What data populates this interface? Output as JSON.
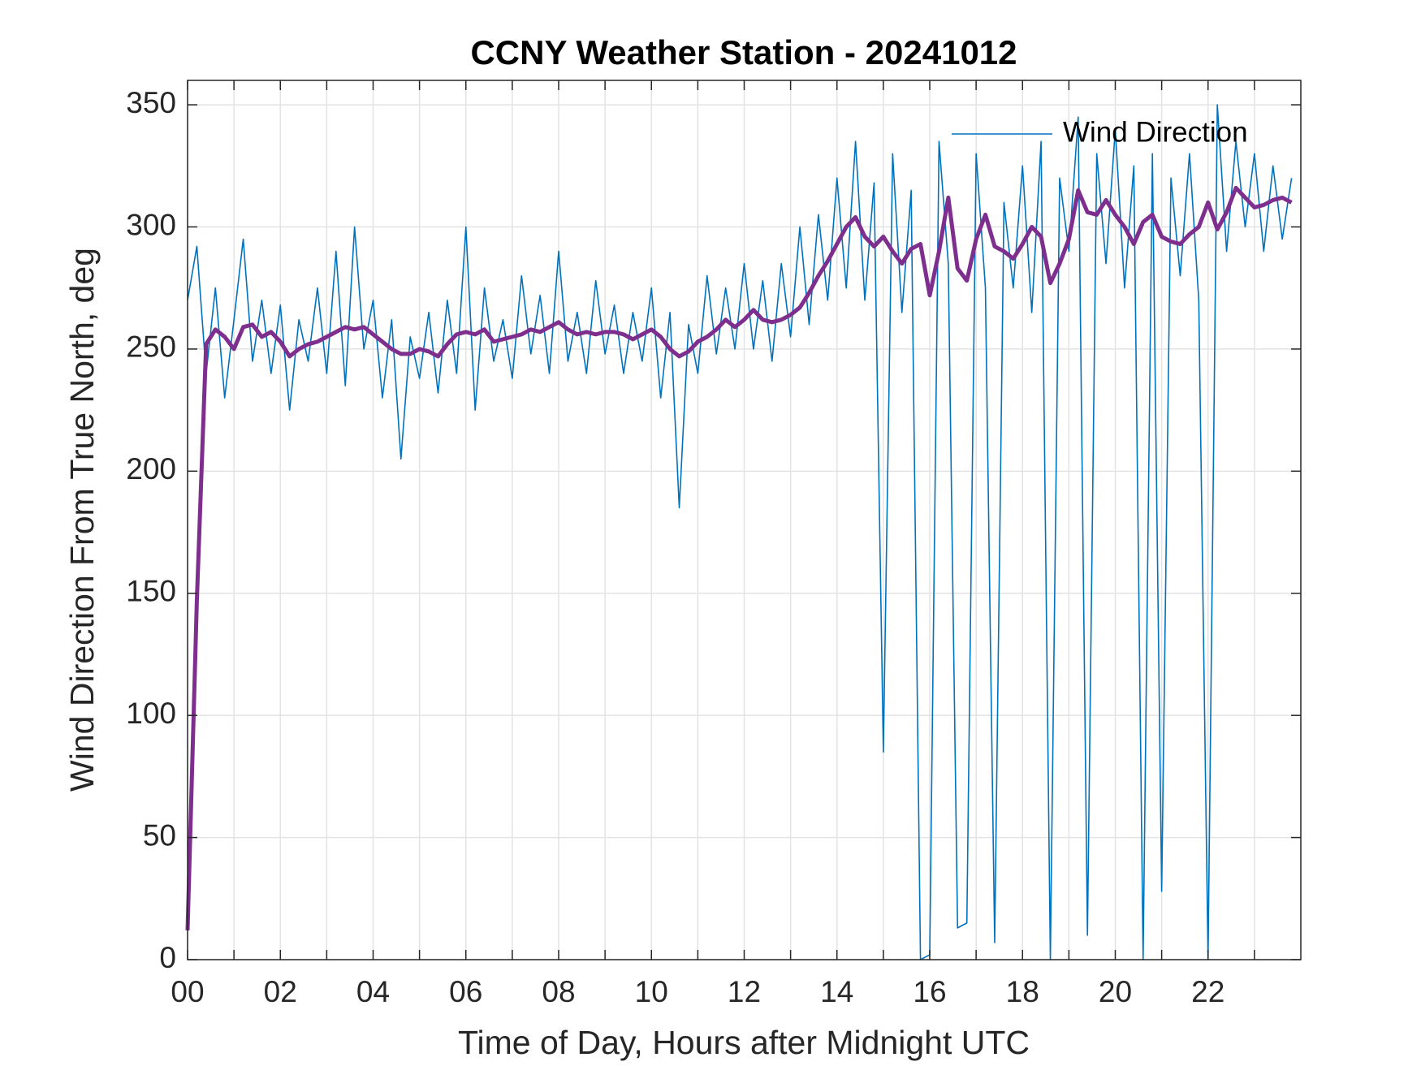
{
  "chart_data": {
    "type": "line",
    "title": "CCNY Weather Station - 20241012",
    "xlabel": "Time of Day, Hours after Midnight UTC",
    "ylabel": "Wind Direction From True North, deg",
    "xlim": [
      0,
      24
    ],
    "ylim": [
      0,
      360
    ],
    "xticks": [
      {
        "value": 0,
        "label": "00"
      },
      {
        "value": 2,
        "label": "02"
      },
      {
        "value": 4,
        "label": "04"
      },
      {
        "value": 6,
        "label": "06"
      },
      {
        "value": 8,
        "label": "08"
      },
      {
        "value": 10,
        "label": "10"
      },
      {
        "value": 12,
        "label": "12"
      },
      {
        "value": 14,
        "label": "14"
      },
      {
        "value": 16,
        "label": "16"
      },
      {
        "value": 18,
        "label": "18"
      },
      {
        "value": 20,
        "label": "20"
      },
      {
        "value": 22,
        "label": "22"
      }
    ],
    "x_minor_ticks": [
      1,
      3,
      5,
      7,
      9,
      11,
      13,
      15,
      17,
      19,
      21,
      23
    ],
    "yticks": [
      0,
      50,
      100,
      150,
      200,
      250,
      300,
      350
    ],
    "grid": true,
    "legend": "northeast",
    "x": [
      0,
      0.2,
      0.4,
      0.6,
      0.8,
      1.0,
      1.2,
      1.4,
      1.6,
      1.8,
      2.0,
      2.2,
      2.4,
      2.6,
      2.8,
      3.0,
      3.2,
      3.4,
      3.6,
      3.8,
      4.0,
      4.2,
      4.4,
      4.6,
      4.8,
      5.0,
      5.2,
      5.4,
      5.6,
      5.8,
      6.0,
      6.2,
      6.4,
      6.6,
      6.8,
      7.0,
      7.2,
      7.4,
      7.6,
      7.8,
      8.0,
      8.2,
      8.4,
      8.6,
      8.8,
      9.0,
      9.2,
      9.4,
      9.6,
      9.8,
      10.0,
      10.2,
      10.4,
      10.6,
      10.8,
      11.0,
      11.2,
      11.4,
      11.6,
      11.8,
      12.0,
      12.2,
      12.4,
      12.6,
      12.8,
      13.0,
      13.2,
      13.4,
      13.6,
      13.8,
      14.0,
      14.2,
      14.4,
      14.6,
      14.8,
      15.0,
      15.2,
      15.4,
      15.6,
      15.8,
      16.0,
      16.2,
      16.4,
      16.6,
      16.8,
      17.0,
      17.2,
      17.4,
      17.6,
      17.8,
      18.0,
      18.2,
      18.4,
      18.6,
      18.8,
      19.0,
      19.2,
      19.4,
      19.6,
      19.8,
      20.0,
      20.2,
      20.4,
      20.6,
      20.8,
      21.0,
      21.2,
      21.4,
      21.6,
      21.8,
      22.0,
      22.2,
      22.4,
      22.6,
      22.8,
      23.0,
      23.2,
      23.4,
      23.6,
      23.8
    ],
    "series": [
      {
        "name": "Wind Direction",
        "color": "#0072bd",
        "values": [
          270,
          292,
          240,
          275,
          230,
          262,
          295,
          245,
          270,
          240,
          268,
          225,
          262,
          245,
          275,
          240,
          290,
          235,
          300,
          250,
          270,
          230,
          262,
          205,
          255,
          238,
          265,
          232,
          270,
          240,
          300,
          225,
          275,
          245,
          262,
          238,
          280,
          248,
          272,
          240,
          290,
          245,
          265,
          240,
          278,
          248,
          268,
          240,
          265,
          245,
          275,
          230,
          265,
          185,
          260,
          240,
          280,
          248,
          275,
          250,
          285,
          250,
          278,
          245,
          285,
          255,
          300,
          260,
          305,
          270,
          320,
          275,
          335,
          270,
          318,
          85,
          330,
          265,
          315,
          0,
          2,
          335,
          285,
          13,
          15,
          330,
          275,
          7,
          310,
          275,
          325,
          265,
          335,
          0,
          320,
          290,
          345,
          10,
          330,
          285,
          340,
          275,
          325,
          0,
          330,
          28,
          320,
          280,
          330,
          270,
          0,
          350,
          290,
          335,
          300,
          330,
          290,
          325,
          295,
          320
        ]
      },
      {
        "color": "#7e2f8e",
        "values": [
          12,
          147,
          252,
          258,
          255,
          250,
          259,
          260,
          255,
          257,
          253,
          247,
          250,
          252,
          253,
          255,
          257,
          259,
          258,
          259,
          256,
          253,
          250,
          248,
          248,
          250,
          249,
          247,
          252,
          256,
          257,
          256,
          258,
          253,
          254,
          255,
          256,
          258,
          257,
          259,
          261,
          258,
          256,
          257,
          256,
          257,
          257,
          256,
          254,
          256,
          258,
          255,
          250,
          247,
          249,
          253,
          255,
          258,
          262,
          259,
          262,
          266,
          262,
          261,
          262,
          264,
          267,
          273,
          280,
          286,
          293,
          300,
          304,
          296,
          292,
          296,
          290,
          285,
          291,
          293,
          272,
          290,
          312,
          283,
          278,
          295,
          305,
          292,
          290,
          287,
          293,
          300,
          296,
          277,
          285,
          295,
          315,
          306,
          305,
          311,
          305,
          300,
          293,
          302,
          305,
          296,
          294,
          293,
          297,
          300,
          310,
          299,
          306,
          316,
          312,
          308,
          309,
          311,
          312,
          310
        ]
      }
    ]
  }
}
